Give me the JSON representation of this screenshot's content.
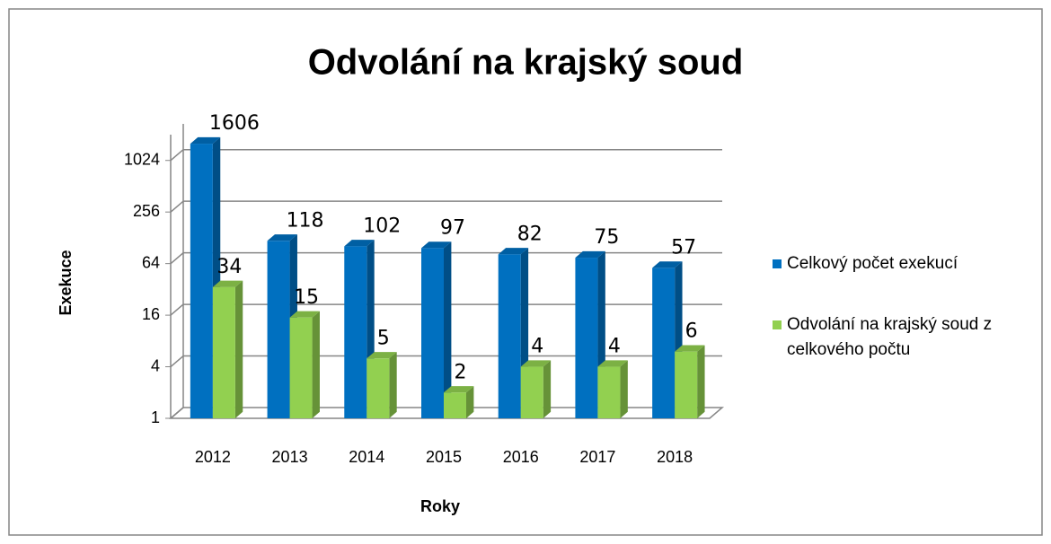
{
  "chart_data": {
    "type": "bar3d",
    "title": "Odvolání na krajský soud",
    "x_label": "Roky",
    "y_label": "Exekuce",
    "categories": [
      "2012",
      "2013",
      "2014",
      "2015",
      "2016",
      "2017",
      "2018"
    ],
    "series": [
      {
        "name": "Celkový počet exekucí",
        "color": "#0070c0",
        "values": [
          1606,
          118,
          102,
          97,
          82,
          75,
          57
        ]
      },
      {
        "name": "Odvolání na krajský soud z celkového počtu",
        "color": "#92d050",
        "values": [
          34,
          15,
          5,
          2,
          4,
          4,
          6
        ]
      }
    ],
    "yscale": "log",
    "ylim": [
      1,
      2048
    ],
    "yticks": [
      1,
      4,
      16,
      64,
      256,
      1024
    ],
    "grid": true,
    "legend": "right"
  }
}
